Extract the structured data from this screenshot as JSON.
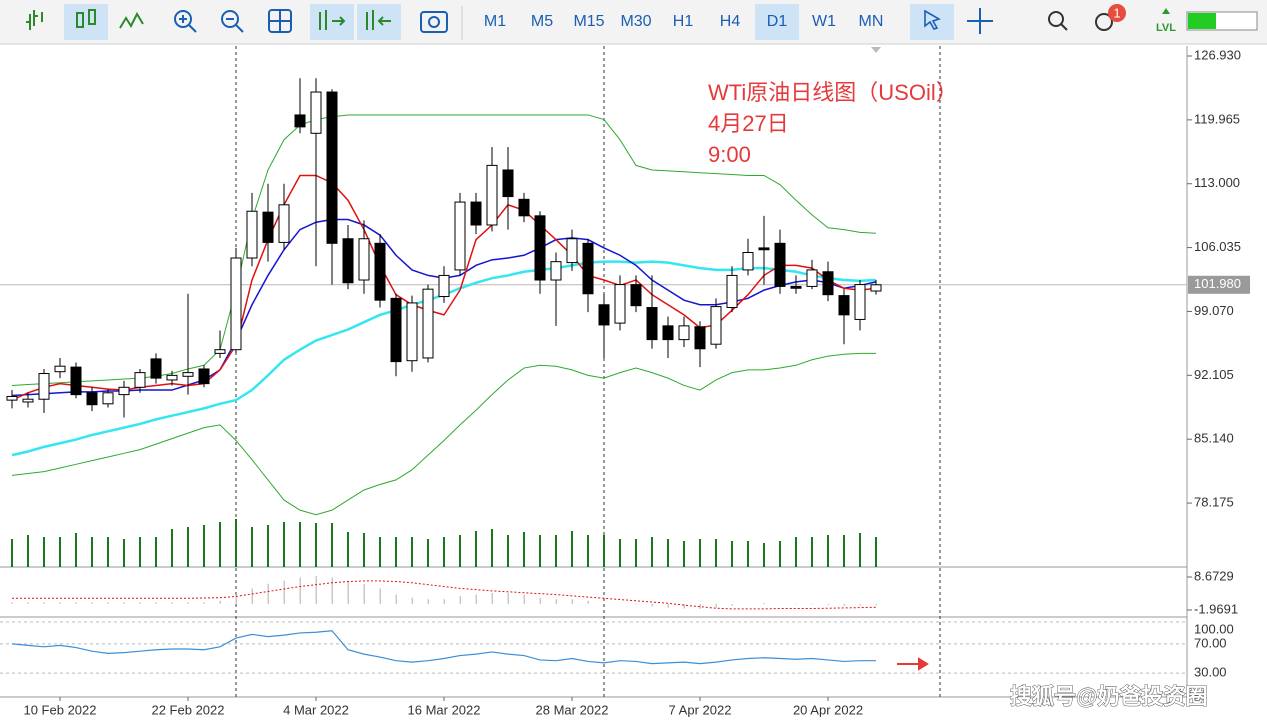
{
  "toolbar": {
    "timeframes": [
      "M1",
      "M5",
      "M15",
      "M30",
      "H1",
      "H4",
      "D1",
      "W1",
      "MN"
    ],
    "active": "D1",
    "badge": "1",
    "lvl": "LVL"
  },
  "chart_data": {
    "type": "candlestick",
    "annotations": [
      "WTi原油日线图（USOil）",
      "4月27日",
      "9:00"
    ],
    "watermark": "搜狐号@奶爸投资圈",
    "open": [
      89.4,
      89.2,
      89.5,
      92.5,
      93.0,
      90.2,
      89.0,
      90.0,
      90.8,
      93.9,
      91.6,
      92.0,
      92.8,
      94.5,
      94.9,
      104.9,
      109.9,
      106.6,
      120.5,
      118.5,
      123.0,
      107.0,
      102.5,
      106.5,
      100.5,
      93.7,
      94.0,
      100.7,
      103.6,
      111.0,
      108.5,
      114.5,
      111.3,
      109.5,
      102.5,
      104.4,
      106.5,
      99.8,
      97.8,
      102.0,
      99.5,
      97.5,
      96.0,
      97.4,
      95.5,
      99.5,
      103.6,
      106.0,
      106.5,
      101.8,
      101.8,
      103.4,
      100.8,
      98.2,
      101.3
    ],
    "high": [
      90.5,
      90.2,
      92.8,
      94.0,
      93.5,
      90.8,
      90.6,
      91.5,
      92.8,
      94.5,
      92.6,
      101.0,
      93.2,
      97.0,
      106.0,
      112.0,
      113.0,
      113.0,
      124.5,
      124.5,
      123.3,
      108.5,
      109.0,
      107.5,
      101.0,
      100.8,
      102.0,
      104.0,
      112.0,
      112.0,
      117.0,
      117.0,
      112.0,
      110.0,
      105.5,
      108.0,
      107.0,
      101.0,
      103.0,
      103.0,
      103.0,
      98.5,
      98.5,
      98.0,
      100.5,
      104.0,
      107.0,
      109.5,
      108.0,
      103.0,
      104.7,
      104.5,
      101.5,
      102.5,
      102.5
    ],
    "low": [
      88.5,
      88.6,
      88.0,
      91.8,
      89.6,
      88.2,
      88.6,
      87.5,
      90.2,
      91.2,
      91.0,
      90.0,
      90.8,
      94.0,
      94.5,
      104.0,
      104.5,
      105.8,
      118.5,
      104.0,
      102.0,
      101.5,
      101.0,
      99.5,
      92.0,
      92.5,
      93.5,
      100.0,
      103.0,
      107.5,
      107.8,
      108.0,
      108.8,
      101.0,
      97.5,
      103.5,
      99.0,
      94.0,
      97.0,
      99.0,
      95.0,
      94.0,
      95.2,
      93.0,
      95.0,
      99.0,
      103.0,
      102.0,
      101.0,
      101.0,
      101.5,
      100.2,
      95.5,
      97.0,
      100.9
    ],
    "close": [
      89.8,
      89.5,
      92.3,
      93.1,
      90.0,
      88.9,
      90.2,
      90.8,
      92.4,
      91.8,
      92.1,
      92.4,
      91.2,
      94.9,
      104.9,
      110.0,
      106.6,
      110.7,
      119.2,
      123.0,
      106.5,
      102.2,
      107.0,
      100.3,
      93.6,
      100.0,
      101.5,
      103.0,
      111.0,
      108.5,
      115.0,
      111.6,
      109.5,
      102.5,
      104.5,
      107.0,
      101.0,
      97.6,
      102.0,
      99.7,
      96.0,
      96.0,
      97.5,
      95.0,
      99.6,
      103.0,
      105.5,
      105.8,
      101.8,
      101.6,
      103.6,
      100.9,
      98.7,
      102.0,
      101.98
    ],
    "ylim": [
      71.42,
      128.02
    ],
    "yticks": [
      {
        "value": 126.93,
        "label": "126.930"
      },
      {
        "value": 119.965,
        "label": "119.965"
      },
      {
        "value": 113,
        "label": "113.000"
      },
      {
        "value": 106.035,
        "label": "106.035"
      },
      {
        "value": 99.07,
        "label": "99.070"
      },
      {
        "value": 92.105,
        "label": "92.105"
      },
      {
        "value": 85.14,
        "label": "85.140"
      },
      {
        "value": 78.175,
        "label": "78.175"
      }
    ],
    "last_price": {
      "value": 101.98,
      "label": "101.980"
    },
    "xticks": [
      {
        "value": 3,
        "label": "10 Feb 2022"
      },
      {
        "value": 11,
        "label": "22 Feb 2022"
      },
      {
        "value": 19,
        "label": "4 Mar 2022"
      },
      {
        "value": 27,
        "label": "16 Mar 2022"
      },
      {
        "value": 35,
        "label": "28 Mar 2022"
      },
      {
        "value": 43,
        "label": "7 Apr 2022"
      },
      {
        "value": 51,
        "label": "20 Apr 2022"
      }
    ],
    "series": [
      {
        "color": "#2eaa2e",
        "width": 1,
        "values": [
          91.0,
          91.1,
          91.2,
          91.3,
          91.4,
          91.5,
          91.6,
          91.7,
          91.8,
          92.0,
          92.3,
          92.8,
          93.2,
          94.9,
          101.4,
          109.1,
          114.5,
          117.8,
          119.4,
          120.0,
          120.3,
          120.5,
          120.5,
          120.5,
          120.5,
          120.5,
          120.5,
          120.5,
          120.5,
          120.5,
          120.5,
          120.5,
          120.5,
          120.5,
          120.5,
          120.5,
          120.5,
          120.0,
          117.8,
          115.0,
          114.5,
          114.4,
          114.3,
          114.2,
          114.1,
          114.0,
          113.9,
          113.9,
          112.9,
          111.2,
          109.6,
          108.2,
          108.0,
          107.7,
          107.6
        ]
      },
      {
        "color": "#2eaa2e",
        "width": 1,
        "values": [
          81.2,
          81.4,
          81.6,
          82.0,
          82.4,
          82.8,
          83.2,
          83.6,
          84.0,
          84.6,
          85.2,
          85.8,
          86.4,
          86.7,
          85.0,
          82.9,
          80.7,
          78.5,
          77.4,
          76.9,
          77.4,
          78.5,
          79.6,
          80.2,
          80.7,
          81.8,
          83.4,
          85.0,
          86.7,
          88.3,
          90.0,
          91.6,
          92.9,
          93.2,
          93.1,
          92.7,
          92.1,
          91.8,
          92.4,
          92.9,
          92.4,
          91.8,
          91.0,
          90.5,
          91.6,
          92.4,
          92.7,
          92.7,
          92.9,
          93.2,
          93.8,
          94.2,
          94.4,
          94.5,
          94.5
        ]
      },
      {
        "color": "#33e6f0",
        "width": 2.5,
        "values": [
          83.4,
          83.8,
          84.3,
          84.7,
          85.1,
          85.6,
          86.0,
          86.4,
          86.8,
          87.3,
          87.7,
          88.1,
          88.5,
          89.0,
          89.4,
          90.5,
          92.1,
          93.8,
          94.9,
          95.9,
          96.5,
          97.1,
          97.9,
          98.7,
          99.2,
          99.8,
          100.3,
          100.9,
          101.6,
          102.2,
          102.7,
          103.0,
          103.4,
          103.6,
          103.8,
          104.1,
          104.4,
          104.5,
          104.5,
          104.4,
          104.5,
          104.4,
          104.1,
          103.8,
          103.6,
          103.6,
          103.8,
          103.8,
          103.6,
          103.4,
          103.0,
          102.7,
          102.5,
          102.4,
          102.5
        ]
      },
      {
        "color": "#1414d2",
        "width": 1.5,
        "values": [
          89.9,
          90.0,
          90.1,
          90.2,
          90.3,
          90.3,
          90.4,
          90.4,
          90.5,
          90.5,
          90.5,
          91.05,
          91.6,
          92.7,
          95.9,
          99.8,
          103.0,
          105.8,
          108.0,
          108.8,
          109.1,
          109.1,
          108.5,
          107.4,
          105.2,
          103.6,
          103.0,
          102.7,
          103.0,
          104.1,
          104.7,
          104.9,
          105.2,
          106.0,
          106.9,
          107.1,
          106.9,
          106.0,
          105.2,
          104.1,
          102.5,
          101.4,
          100.3,
          99.8,
          99.8,
          100.1,
          100.5,
          101.4,
          101.9,
          102.3,
          102.5,
          102.2,
          101.6,
          101.9,
          102.3
        ]
      },
      {
        "color": "#e01010",
        "width": 1.5,
        "values": [
          89.4,
          90.2,
          90.8,
          91.2,
          91.0,
          90.8,
          90.6,
          90.5,
          90.8,
          91.0,
          91.2,
          91.0,
          91.2,
          92.7,
          95.4,
          102.5,
          106.9,
          110.7,
          113.9,
          113.9,
          113.1,
          111.2,
          108.0,
          104.1,
          100.9,
          99.8,
          99.2,
          98.7,
          101.4,
          106.9,
          108.5,
          110.7,
          110.1,
          108.5,
          106.9,
          105.2,
          103.0,
          102.5,
          101.9,
          102.5,
          100.9,
          99.8,
          98.7,
          97.3,
          97.6,
          99.2,
          100.9,
          103.0,
          104.1,
          104.1,
          103.8,
          102.5,
          101.6,
          101.4,
          101.6
        ]
      }
    ],
    "volume": {
      "color": "#1a7a1a",
      "ylim": [
        0,
        100
      ],
      "values": [
        28,
        32,
        30,
        30,
        34,
        30,
        30,
        28,
        30,
        30,
        38,
        40,
        42,
        45,
        48,
        40,
        42,
        45,
        45,
        44,
        44,
        35,
        34,
        30,
        30,
        30,
        28,
        30,
        32,
        36,
        38,
        32,
        35,
        32,
        32,
        36,
        32,
        32,
        28,
        28,
        30,
        28,
        26,
        28,
        28,
        26,
        26,
        24,
        26,
        30,
        30,
        32,
        32,
        34,
        30
      ]
    },
    "macd": {
      "ylim": [
        -3.58,
        11.57
      ],
      "yticks": [
        8.6729,
        -1.9691
      ],
      "color": "#c8c8c8",
      "signal_color": "#e01010",
      "histogram": [
        0.5,
        0.5,
        0.5,
        0.5,
        0.5,
        0.5,
        0.5,
        0.5,
        0.5,
        0.5,
        0.5,
        0.5,
        0.5,
        1,
        3,
        5,
        6.5,
        7.5,
        8.5,
        9,
        8.5,
        7.5,
        6.5,
        5,
        3,
        2,
        1.5,
        1.5,
        2.5,
        3,
        3.5,
        3.5,
        3,
        2,
        1.5,
        1.5,
        1,
        0,
        0,
        -0.2,
        -0.8,
        -1.2,
        -1.5,
        -1.6,
        -1.2,
        -0.6,
        0,
        0.3,
        0,
        -0.1,
        -0.2,
        -0.4,
        -0.6,
        -0.5,
        -0.4
      ],
      "signal": [
        1.8,
        1.8,
        1.8,
        1.8,
        1.8,
        1.8,
        1.8,
        1.8,
        1.8,
        1.8,
        1.8,
        1.8,
        1.9,
        2.0,
        2.4,
        3.2,
        4.0,
        4.8,
        5.6,
        6.2,
        6.8,
        7.2,
        7.4,
        7.4,
        7.2,
        6.8,
        6.2,
        5.6,
        5.0,
        4.6,
        4.2,
        3.9,
        3.6,
        3.3,
        3.0,
        2.6,
        2.2,
        1.8,
        1.4,
        1.0,
        0.6,
        0.2,
        -0.4,
        -0.9,
        -1.4,
        -1.6,
        -1.6,
        -1.6,
        -1.5,
        -1.5,
        -1.5,
        -1.4,
        -1.3,
        -1.2,
        -1.1
      ]
    },
    "rsi": {
      "ylim": [
        0,
        100
      ],
      "color": "#3a8fd8",
      "yticks": [
        {
          "value": 100,
          "label": "100.00"
        },
        {
          "value": 70,
          "label": "70.00"
        },
        {
          "value": 30,
          "label": "30.00"
        }
      ],
      "values": [
        70,
        68,
        66,
        68,
        65,
        60,
        57,
        58,
        60,
        62,
        63,
        63,
        62,
        66,
        78,
        83,
        80,
        82,
        85,
        86,
        88,
        62,
        56,
        52,
        47,
        45,
        47,
        50,
        54,
        56,
        59,
        56,
        54,
        48,
        47,
        50,
        46,
        44,
        47,
        46,
        43,
        44,
        45,
        43,
        45,
        48,
        50,
        51,
        50,
        49,
        50,
        48,
        46,
        47,
        47
      ]
    }
  }
}
